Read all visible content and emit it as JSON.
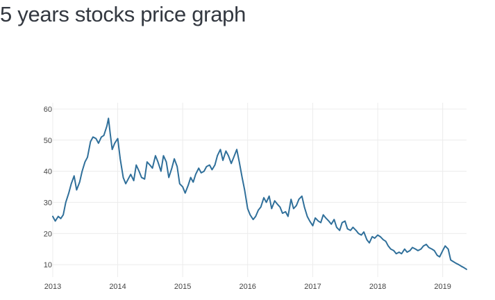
{
  "page": {
    "title": "5 years stocks price graph"
  },
  "colors": {
    "title": "#333840",
    "line": "#2f6f9a",
    "grid": "#ececec",
    "tick_label": "#444444",
    "background": "#ffffff"
  },
  "chart_data": {
    "type": "line",
    "title": "",
    "xlabel": "",
    "ylabel": "",
    "grid": true,
    "legend": "none",
    "x_ticks": [
      "2013",
      "2014",
      "2015",
      "2016",
      "2017",
      "2018",
      "2019"
    ],
    "y_ticks": [
      10,
      20,
      30,
      40,
      50,
      60
    ],
    "xlim": [
      "2013-01-01",
      "2019-05-15"
    ],
    "ylim": [
      6,
      62
    ],
    "series": [
      {
        "x": [
          "2013-01-01",
          "2013-01-15",
          "2013-02-01",
          "2013-02-15",
          "2013-03-01",
          "2013-03-15",
          "2013-04-01",
          "2013-04-15",
          "2013-05-01",
          "2013-05-15",
          "2013-06-01",
          "2013-06-15",
          "2013-07-01",
          "2013-07-15",
          "2013-08-01",
          "2013-08-15",
          "2013-09-01",
          "2013-09-15",
          "2013-10-01",
          "2013-10-15",
          "2013-11-01",
          "2013-11-10",
          "2013-11-20",
          "2013-12-01",
          "2013-12-15",
          "2014-01-01",
          "2014-01-15",
          "2014-02-01",
          "2014-02-15",
          "2014-03-01",
          "2014-03-15",
          "2014-04-01",
          "2014-04-15",
          "2014-05-01",
          "2014-05-15",
          "2014-06-01",
          "2014-06-15",
          "2014-07-01",
          "2014-07-15",
          "2014-08-01",
          "2014-08-15",
          "2014-09-01",
          "2014-09-15",
          "2014-10-01",
          "2014-10-15",
          "2014-11-01",
          "2014-11-15",
          "2014-12-01",
          "2014-12-15",
          "2015-01-01",
          "2015-01-15",
          "2015-02-01",
          "2015-02-15",
          "2015-03-01",
          "2015-03-15",
          "2015-04-01",
          "2015-04-15",
          "2015-05-01",
          "2015-05-15",
          "2015-06-01",
          "2015-06-15",
          "2015-07-01",
          "2015-07-15",
          "2015-08-01",
          "2015-08-15",
          "2015-09-01",
          "2015-09-15",
          "2015-10-01",
          "2015-10-15",
          "2015-11-01",
          "2015-11-15",
          "2015-12-01",
          "2015-12-15",
          "2016-01-01",
          "2016-01-15",
          "2016-02-01",
          "2016-02-15",
          "2016-03-01",
          "2016-03-15",
          "2016-04-01",
          "2016-04-15",
          "2016-05-01",
          "2016-05-15",
          "2016-06-01",
          "2016-06-15",
          "2016-07-01",
          "2016-07-15",
          "2016-08-01",
          "2016-08-15",
          "2016-09-01",
          "2016-09-15",
          "2016-10-01",
          "2016-10-15",
          "2016-11-01",
          "2016-11-15",
          "2016-12-01",
          "2016-12-15",
          "2017-01-01",
          "2017-01-15",
          "2017-02-01",
          "2017-02-15",
          "2017-03-01",
          "2017-03-15",
          "2017-04-01",
          "2017-04-15",
          "2017-05-01",
          "2017-05-15",
          "2017-06-01",
          "2017-06-15",
          "2017-07-01",
          "2017-07-15",
          "2017-08-01",
          "2017-08-15",
          "2017-09-01",
          "2017-09-15",
          "2017-10-01",
          "2017-10-15",
          "2017-11-01",
          "2017-11-15",
          "2017-12-01",
          "2017-12-15",
          "2018-01-01",
          "2018-01-15",
          "2018-02-01",
          "2018-02-15",
          "2018-03-01",
          "2018-03-15",
          "2018-04-01",
          "2018-04-15",
          "2018-05-01",
          "2018-05-15",
          "2018-06-01",
          "2018-06-15",
          "2018-07-01",
          "2018-07-15",
          "2018-08-01",
          "2018-08-15",
          "2018-09-01",
          "2018-09-15",
          "2018-10-01",
          "2018-10-15",
          "2018-11-01",
          "2018-11-15",
          "2018-12-01",
          "2018-12-15",
          "2019-01-01",
          "2019-01-15",
          "2019-02-01",
          "2019-02-15",
          "2019-03-01",
          "2019-03-15",
          "2019-04-01",
          "2019-04-15",
          "2019-05-01",
          "2019-05-15"
        ],
        "values": [
          25.5,
          24.0,
          25.5,
          24.8,
          26.0,
          30.0,
          33.0,
          36.0,
          38.5,
          34.0,
          36.5,
          40.0,
          43.0,
          44.5,
          49.5,
          51.0,
          50.5,
          49.0,
          51.0,
          51.5,
          54.5,
          57.0,
          52.0,
          47.0,
          49.0,
          50.5,
          44.0,
          38.0,
          36.0,
          37.5,
          39.0,
          37.0,
          42.0,
          40.0,
          38.0,
          37.5,
          43.0,
          42.0,
          41.0,
          45.0,
          43.0,
          40.0,
          45.0,
          43.0,
          38.0,
          41.0,
          44.0,
          41.5,
          36.0,
          35.0,
          33.0,
          35.5,
          38.0,
          36.5,
          39.0,
          41.0,
          39.5,
          40.0,
          41.5,
          42.0,
          40.5,
          42.0,
          45.0,
          47.0,
          43.5,
          46.5,
          45.0,
          42.5,
          44.5,
          47.0,
          43.0,
          38.0,
          34.0,
          28.0,
          26.0,
          24.5,
          25.5,
          27.5,
          28.5,
          31.5,
          30.0,
          32.0,
          28.0,
          30.5,
          29.5,
          28.5,
          26.5,
          27.0,
          25.5,
          31.0,
          28.0,
          29.0,
          31.0,
          32.0,
          28.5,
          25.5,
          24.0,
          22.5,
          25.0,
          24.0,
          23.5,
          26.0,
          25.0,
          24.0,
          23.0,
          24.5,
          22.0,
          21.0,
          23.5,
          24.0,
          21.5,
          21.0,
          22.0,
          21.0,
          20.0,
          19.5,
          20.5,
          18.0,
          17.0,
          19.0,
          18.5,
          19.5,
          19.0,
          18.0,
          17.5,
          16.0,
          15.0,
          14.5,
          13.5,
          14.0,
          13.5,
          15.0,
          14.0,
          14.5,
          15.5,
          15.0,
          14.5,
          15.0,
          16.0,
          16.5,
          15.5,
          15.0,
          14.5,
          13.0,
          12.5,
          14.5,
          16.0,
          15.0,
          11.5,
          11.0,
          10.5,
          10.0,
          9.5,
          9.0,
          8.5
        ]
      }
    ]
  }
}
